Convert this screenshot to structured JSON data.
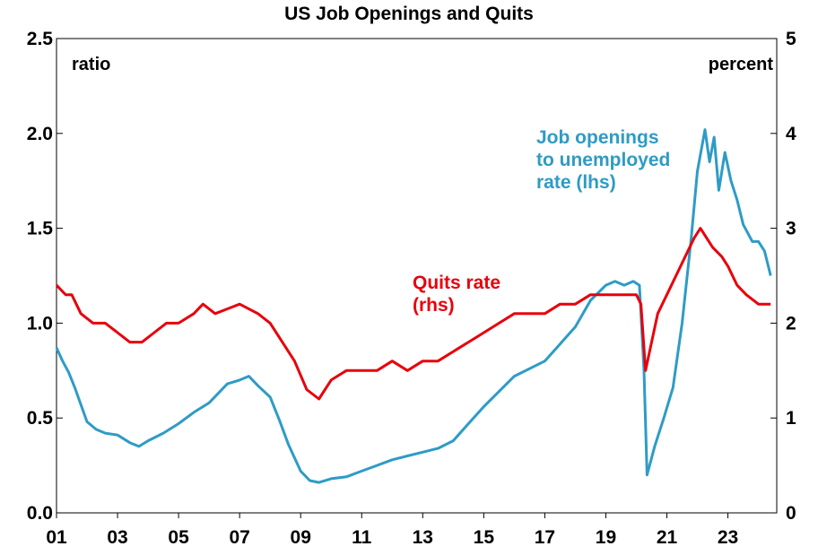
{
  "chart_data": {
    "type": "line",
    "title": "US Job Openings and Quits",
    "left_unit": "ratio",
    "right_unit": "percent",
    "x_ticks": [
      "01",
      "03",
      "05",
      "07",
      "09",
      "11",
      "13",
      "15",
      "17",
      "19",
      "21",
      "23"
    ],
    "x_range": [
      2001.0,
      2024.6
    ],
    "left_axis": {
      "range": [
        0,
        2.5
      ],
      "ticks": [
        "0.0",
        "0.5",
        "1.0",
        "1.5",
        "2.0",
        "2.5"
      ]
    },
    "right_axis": {
      "range": [
        0,
        5
      ],
      "ticks": [
        "0",
        "1",
        "2",
        "3",
        "4",
        "5"
      ]
    },
    "grid": false,
    "colors": {
      "openings": "#2E9BC6",
      "quits": "#E8000B"
    },
    "series": [
      {
        "name": "Job openings to unemployed rate (lhs)",
        "label_lines": [
          "Job openings",
          "to unemployed",
          "rate (lhs)"
        ],
        "axis": "left",
        "points": [
          [
            2001.0,
            0.87
          ],
          [
            2001.2,
            0.8
          ],
          [
            2001.4,
            0.74
          ],
          [
            2001.6,
            0.66
          ],
          [
            2001.8,
            0.57
          ],
          [
            2002.0,
            0.48
          ],
          [
            2002.3,
            0.44
          ],
          [
            2002.6,
            0.42
          ],
          [
            2003.0,
            0.41
          ],
          [
            2003.4,
            0.37
          ],
          [
            2003.7,
            0.35
          ],
          [
            2004.0,
            0.38
          ],
          [
            2004.5,
            0.42
          ],
          [
            2005.0,
            0.47
          ],
          [
            2005.5,
            0.53
          ],
          [
            2006.0,
            0.58
          ],
          [
            2006.3,
            0.63
          ],
          [
            2006.6,
            0.68
          ],
          [
            2007.0,
            0.7
          ],
          [
            2007.3,
            0.72
          ],
          [
            2007.6,
            0.67
          ],
          [
            2008.0,
            0.61
          ],
          [
            2008.3,
            0.49
          ],
          [
            2008.6,
            0.36
          ],
          [
            2009.0,
            0.22
          ],
          [
            2009.3,
            0.17
          ],
          [
            2009.6,
            0.16
          ],
          [
            2010.0,
            0.18
          ],
          [
            2010.5,
            0.19
          ],
          [
            2011.0,
            0.22
          ],
          [
            2011.5,
            0.25
          ],
          [
            2012.0,
            0.28
          ],
          [
            2012.5,
            0.3
          ],
          [
            2013.0,
            0.32
          ],
          [
            2013.5,
            0.34
          ],
          [
            2014.0,
            0.38
          ],
          [
            2014.5,
            0.47
          ],
          [
            2015.0,
            0.56
          ],
          [
            2015.5,
            0.64
          ],
          [
            2016.0,
            0.72
          ],
          [
            2016.5,
            0.76
          ],
          [
            2017.0,
            0.8
          ],
          [
            2017.5,
            0.89
          ],
          [
            2018.0,
            0.98
          ],
          [
            2018.5,
            1.12
          ],
          [
            2019.0,
            1.2
          ],
          [
            2019.3,
            1.22
          ],
          [
            2019.6,
            1.2
          ],
          [
            2019.9,
            1.22
          ],
          [
            2020.1,
            1.2
          ],
          [
            2020.25,
            0.75
          ],
          [
            2020.35,
            0.2
          ],
          [
            2020.6,
            0.35
          ],
          [
            2020.9,
            0.5
          ],
          [
            2021.2,
            0.66
          ],
          [
            2021.5,
            1.0
          ],
          [
            2021.8,
            1.45
          ],
          [
            2022.0,
            1.8
          ],
          [
            2022.25,
            2.02
          ],
          [
            2022.4,
            1.85
          ],
          [
            2022.55,
            1.98
          ],
          [
            2022.7,
            1.7
          ],
          [
            2022.9,
            1.9
          ],
          [
            2023.1,
            1.75
          ],
          [
            2023.3,
            1.65
          ],
          [
            2023.5,
            1.52
          ],
          [
            2023.8,
            1.43
          ],
          [
            2024.0,
            1.43
          ],
          [
            2024.2,
            1.38
          ],
          [
            2024.4,
            1.25
          ]
        ]
      },
      {
        "name": "Quits rate (rhs)",
        "label_lines": [
          "Quits rate",
          "(rhs)"
        ],
        "axis": "right",
        "points": [
          [
            2001.0,
            2.4
          ],
          [
            2001.3,
            2.3
          ],
          [
            2001.5,
            2.3
          ],
          [
            2001.8,
            2.1
          ],
          [
            2002.2,
            2.0
          ],
          [
            2002.6,
            2.0
          ],
          [
            2003.0,
            1.9
          ],
          [
            2003.4,
            1.8
          ],
          [
            2003.8,
            1.8
          ],
          [
            2004.2,
            1.9
          ],
          [
            2004.6,
            2.0
          ],
          [
            2005.0,
            2.0
          ],
          [
            2005.5,
            2.1
          ],
          [
            2005.8,
            2.2
          ],
          [
            2006.2,
            2.1
          ],
          [
            2007.0,
            2.2
          ],
          [
            2007.6,
            2.1
          ],
          [
            2008.0,
            2.0
          ],
          [
            2008.4,
            1.8
          ],
          [
            2008.8,
            1.6
          ],
          [
            2009.2,
            1.3
          ],
          [
            2009.6,
            1.2
          ],
          [
            2010.0,
            1.4
          ],
          [
            2010.5,
            1.5
          ],
          [
            2011.0,
            1.5
          ],
          [
            2011.5,
            1.5
          ],
          [
            2012.0,
            1.6
          ],
          [
            2012.5,
            1.5
          ],
          [
            2013.0,
            1.6
          ],
          [
            2013.5,
            1.6
          ],
          [
            2014.0,
            1.7
          ],
          [
            2014.5,
            1.8
          ],
          [
            2015.0,
            1.9
          ],
          [
            2015.5,
            2.0
          ],
          [
            2016.0,
            2.1
          ],
          [
            2016.5,
            2.1
          ],
          [
            2017.0,
            2.1
          ],
          [
            2017.5,
            2.2
          ],
          [
            2018.0,
            2.2
          ],
          [
            2018.5,
            2.3
          ],
          [
            2019.0,
            2.3
          ],
          [
            2019.5,
            2.3
          ],
          [
            2020.0,
            2.3
          ],
          [
            2020.15,
            2.2
          ],
          [
            2020.3,
            1.5
          ],
          [
            2020.5,
            1.8
          ],
          [
            2020.7,
            2.1
          ],
          [
            2021.0,
            2.3
          ],
          [
            2021.3,
            2.5
          ],
          [
            2021.6,
            2.7
          ],
          [
            2021.9,
            2.9
          ],
          [
            2022.1,
            3.0
          ],
          [
            2022.3,
            2.9
          ],
          [
            2022.5,
            2.8
          ],
          [
            2022.8,
            2.7
          ],
          [
            2023.0,
            2.6
          ],
          [
            2023.3,
            2.4
          ],
          [
            2023.6,
            2.3
          ],
          [
            2024.0,
            2.2
          ],
          [
            2024.4,
            2.2
          ]
        ]
      }
    ]
  }
}
